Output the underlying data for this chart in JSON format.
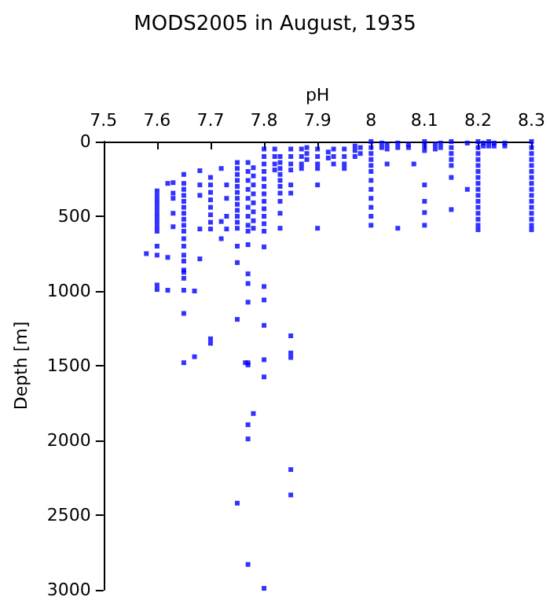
{
  "chart_data": {
    "type": "scatter",
    "title": "MODS2005 in August, 1935",
    "xlabel": "pH",
    "ylabel": "Depth [m]",
    "marker": "square",
    "grid": false,
    "xlim": [
      7.5,
      8.3
    ],
    "xticks": [
      7.5,
      7.6,
      7.7,
      7.8,
      7.9,
      8,
      8.1,
      8.2,
      8.3
    ],
    "ylim": [
      3000,
      0
    ],
    "yticks": [
      0,
      500,
      1000,
      1500,
      2000,
      2500,
      3000
    ],
    "series": [
      {
        "color": "#0000ff",
        "x": [
          7.58,
          7.6,
          7.6,
          7.6,
          7.6,
          7.6,
          7.6,
          7.6,
          7.6,
          7.6,
          7.6,
          7.6,
          7.6,
          7.6,
          7.6,
          7.62,
          7.62,
          7.62,
          7.63,
          7.63,
          7.63,
          7.63,
          7.63,
          7.65,
          7.65,
          7.65,
          7.65,
          7.65,
          7.65,
          7.65,
          7.65,
          7.65,
          7.65,
          7.65,
          7.65,
          7.65,
          7.65,
          7.65,
          7.65,
          7.65,
          7.65,
          7.65,
          7.65,
          7.67,
          7.67,
          7.68,
          7.68,
          7.68,
          7.68,
          7.68,
          7.7,
          7.7,
          7.7,
          7.7,
          7.7,
          7.7,
          7.7,
          7.7,
          7.7,
          7.7,
          7.72,
          7.72,
          7.72,
          7.73,
          7.73,
          7.73,
          7.73,
          7.75,
          7.75,
          7.75,
          7.75,
          7.75,
          7.75,
          7.75,
          7.75,
          7.75,
          7.75,
          7.75,
          7.75,
          7.75,
          7.75,
          7.75,
          7.75,
          7.765,
          7.77,
          7.77,
          7.77,
          7.77,
          7.77,
          7.77,
          7.77,
          7.77,
          7.77,
          7.77,
          7.77,
          7.77,
          7.77,
          7.77,
          7.77,
          7.77,
          7.77,
          7.77,
          7.78,
          7.78,
          7.78,
          7.78,
          7.78,
          7.78,
          7.78,
          7.78,
          7.78,
          7.8,
          7.8,
          7.8,
          7.8,
          7.8,
          7.8,
          7.8,
          7.8,
          7.8,
          7.8,
          7.8,
          7.8,
          7.8,
          7.8,
          7.8,
          7.8,
          7.8,
          7.8,
          7.8,
          7.82,
          7.82,
          7.82,
          7.82,
          7.83,
          7.83,
          7.83,
          7.83,
          7.83,
          7.83,
          7.83,
          7.83,
          7.83,
          7.83,
          7.85,
          7.85,
          7.85,
          7.85,
          7.85,
          7.85,
          7.85,
          7.85,
          7.85,
          7.85,
          7.85,
          7.87,
          7.87,
          7.87,
          7.87,
          7.88,
          7.88,
          7.88,
          7.9,
          7.9,
          7.9,
          7.9,
          7.9,
          7.9,
          7.92,
          7.92,
          7.93,
          7.93,
          7.93,
          7.95,
          7.95,
          7.95,
          7.95,
          7.97,
          7.97,
          7.97,
          7.98,
          7.98,
          8,
          8,
          8,
          8,
          8,
          8,
          8,
          8,
          8,
          8,
          8,
          8,
          8.02,
          8.02,
          8.03,
          8.03,
          8.03,
          8.05,
          8.05,
          8.05,
          8.07,
          8.07,
          8.08,
          8.1,
          8.1,
          8.1,
          8.1,
          8.1,
          8.1,
          8.1,
          8.12,
          8.12,
          8.13,
          8.13,
          8.15,
          8.15,
          8.15,
          8.15,
          8.15,
          8.15,
          8.15,
          8.18,
          8.18,
          8.2,
          8.2,
          8.2,
          8.2,
          8.2,
          8.2,
          8.2,
          8.2,
          8.2,
          8.2,
          8.2,
          8.2,
          8.2,
          8.2,
          8.2,
          8.2,
          8.21,
          8.21,
          8.22,
          8.22,
          8.23,
          8.23,
          8.25,
          8.25,
          8.3,
          8.3,
          8.3,
          8.3,
          8.3,
          8.3,
          8.3,
          8.3,
          8.3,
          8.3,
          8.3,
          8.3,
          8.3,
          8.3,
          8.3,
          8.3
        ],
        "values": [
          750,
          330,
          360,
          390,
          420,
          450,
          480,
          510,
          540,
          570,
          600,
          700,
          760,
          960,
          990,
          280,
          775,
          995,
          275,
          345,
          380,
          480,
          570,
          220,
          280,
          320,
          360,
          400,
          440,
          480,
          520,
          560,
          600,
          650,
          700,
          760,
          800,
          860,
          875,
          915,
          995,
          1150,
          1480,
          1000,
          1440,
          195,
          290,
          360,
          585,
          785,
          240,
          290,
          340,
          390,
          440,
          490,
          540,
          585,
          1320,
          1350,
          180,
          535,
          650,
          290,
          380,
          500,
          585,
          140,
          180,
          220,
          260,
          300,
          340,
          380,
          420,
          460,
          500,
          540,
          580,
          700,
          810,
          1190,
          2420,
          1480,
          140,
          200,
          260,
          320,
          380,
          440,
          500,
          560,
          600,
          690,
          885,
          950,
          1075,
          1480,
          1495,
          1895,
          1990,
          2830,
          175,
          230,
          290,
          350,
          410,
          470,
          530,
          580,
          1820,
          50,
          100,
          150,
          200,
          250,
          300,
          350,
          400,
          450,
          500,
          550,
          600,
          705,
          970,
          1060,
          1230,
          1460,
          1575,
          2990,
          50,
          100,
          150,
          190,
          100,
          140,
          180,
          220,
          260,
          300,
          345,
          400,
          480,
          580,
          50,
          100,
          150,
          190,
          290,
          345,
          1300,
          1415,
          1445,
          2195,
          2365,
          50,
          100,
          150,
          180,
          40,
          80,
          120,
          50,
          100,
          150,
          180,
          290,
          580,
          70,
          110,
          50,
          100,
          150,
          50,
          100,
          150,
          180,
          30,
          60,
          100,
          40,
          80,
          0,
          40,
          80,
          120,
          160,
          200,
          260,
          320,
          380,
          440,
          500,
          560,
          10,
          40,
          20,
          50,
          150,
          10,
          40,
          580,
          20,
          40,
          150,
          0,
          30,
          60,
          290,
          400,
          475,
          560,
          20,
          50,
          10,
          40,
          0,
          40,
          80,
          120,
          160,
          240,
          455,
          10,
          320,
          0,
          40,
          80,
          120,
          160,
          200,
          240,
          280,
          320,
          360,
          400,
          440,
          480,
          520,
          560,
          590,
          10,
          30,
          0,
          30,
          10,
          30,
          10,
          30,
          0,
          40,
          80,
          120,
          160,
          200,
          240,
          280,
          320,
          360,
          400,
          440,
          480,
          520,
          560,
          590
        ]
      }
    ]
  }
}
